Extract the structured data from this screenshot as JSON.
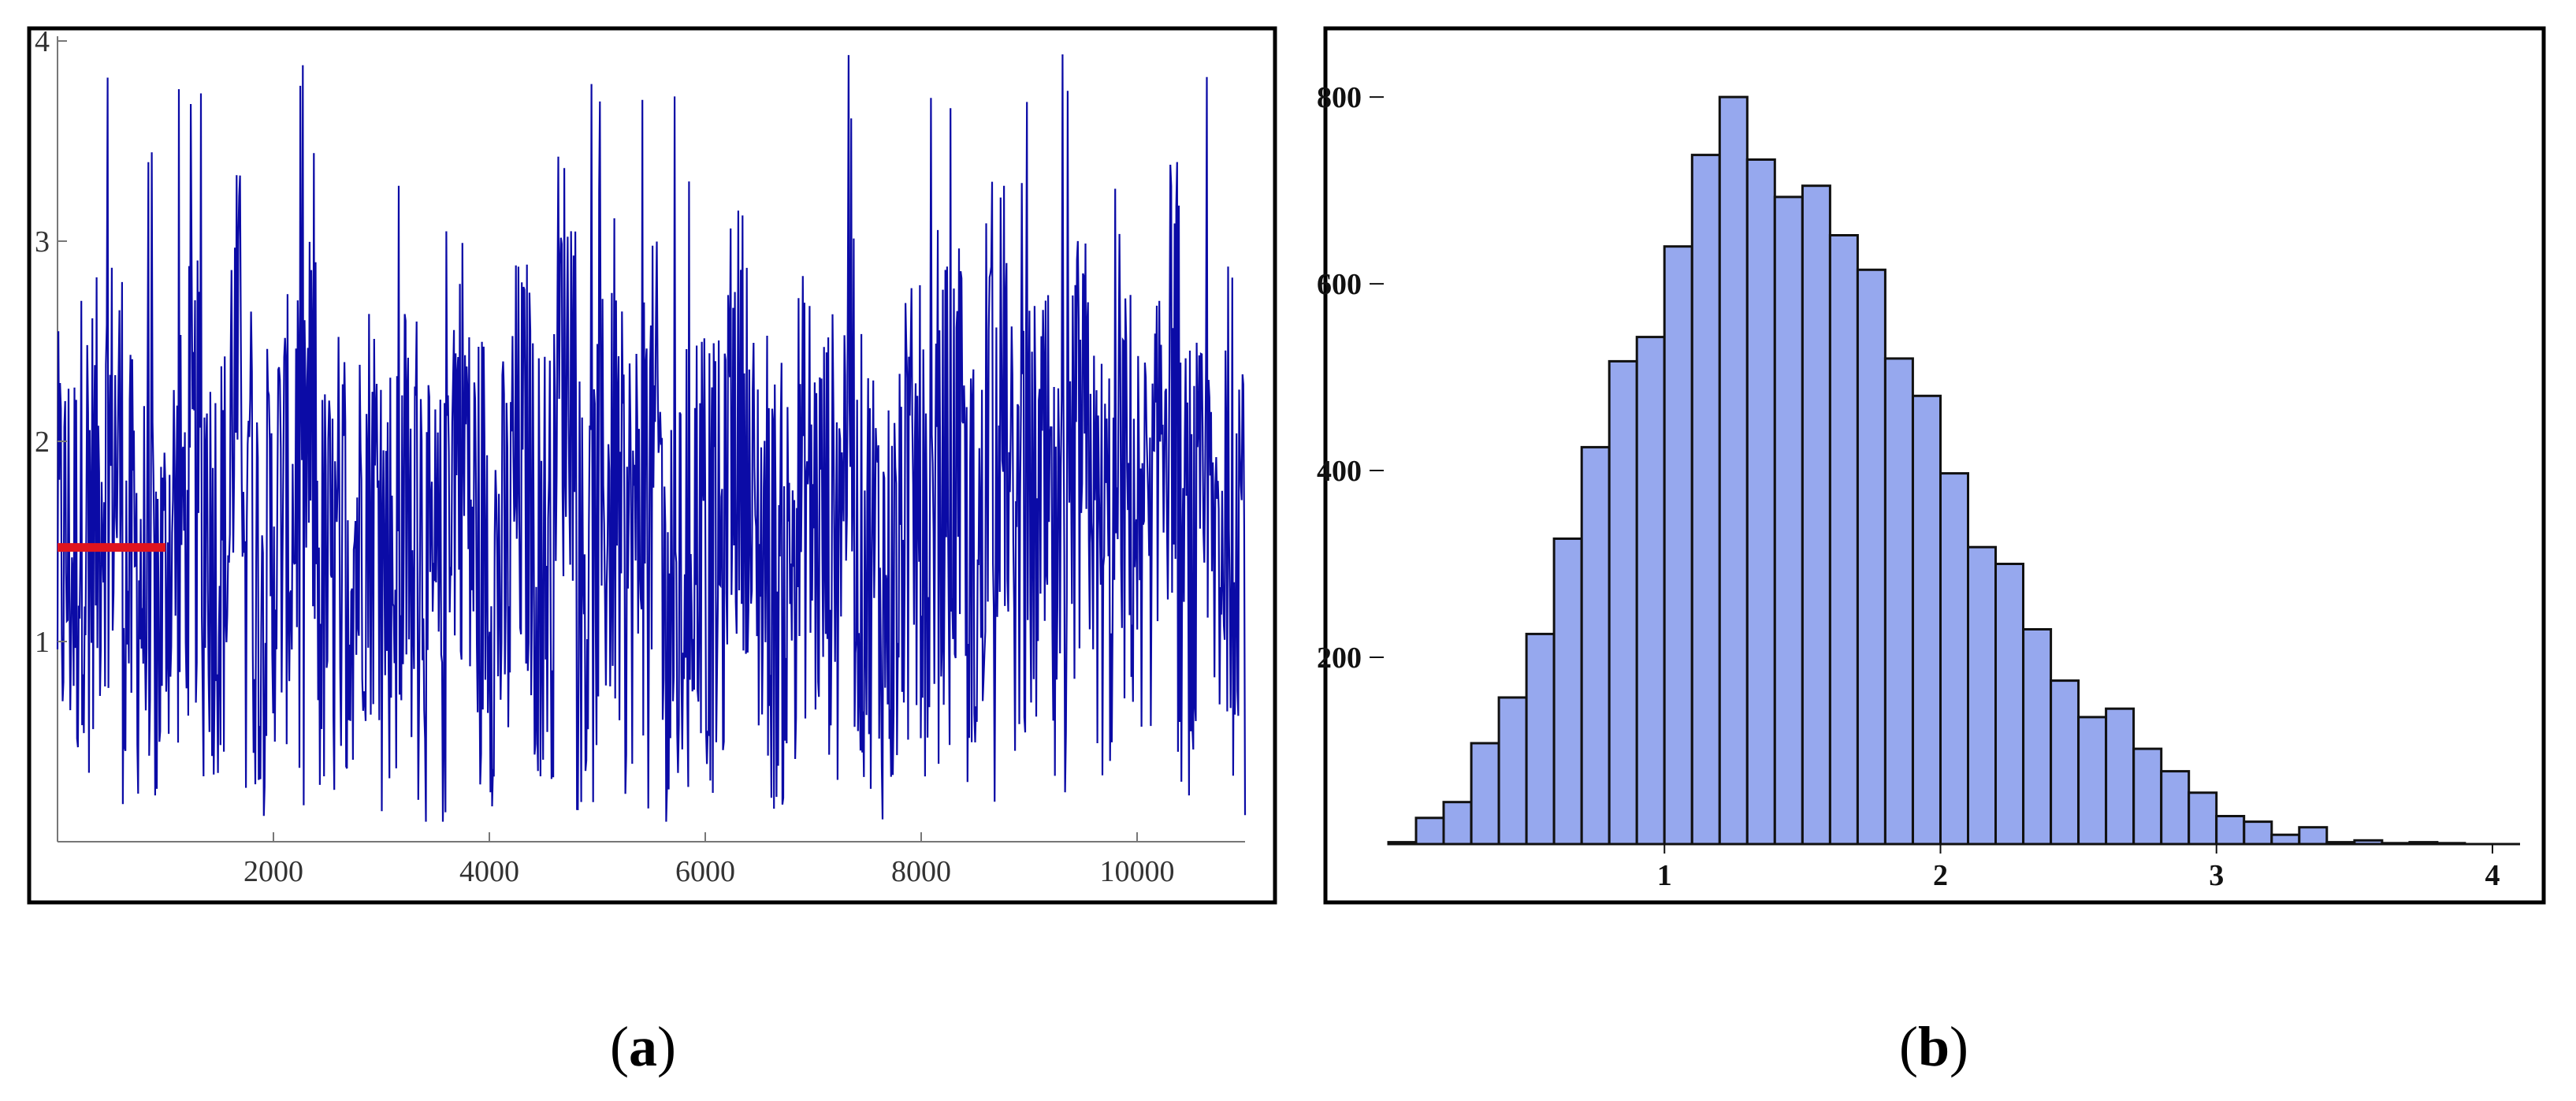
{
  "chart_data": [
    {
      "type": "line",
      "panel_label": "a",
      "title": "",
      "xlabel": "",
      "ylabel": "",
      "xlim": [
        0,
        11000
      ],
      "ylim": [
        0,
        4
      ],
      "xticks": [
        2000,
        4000,
        6000,
        8000,
        10000
      ],
      "yticks": [
        1,
        2,
        3,
        4
      ],
      "grid": false,
      "colors": {
        "trace": "#0b0ba6",
        "reference": "#e0141e"
      },
      "series": [
        {
          "kind": "trace",
          "n_points": 11000,
          "mean_approx": 1.5,
          "range_approx": [
            0.1,
            4.0
          ],
          "values_sampled_every_200": [
            1.3,
            1.9,
            2.4,
            1.1,
            0.8,
            1.6,
            2.1,
            1.4,
            3.2,
            1.2,
            1.7,
            2.5,
            0.9,
            1.5,
            2.0,
            1.3,
            1.8,
            0.7,
            2.7,
            1.6,
            1.1,
            2.2,
            1.4,
            3.5,
            1.0,
            1.9,
            1.5,
            2.3,
            0.6,
            1.7,
            1.2,
            2.8,
            1.5,
            1.0,
            2.0,
            1.6,
            2.6,
            1.3,
            0.9,
            1.8,
            1.4,
            2.2,
            1.1,
            3.0,
            1.5,
            1.7,
            0.8,
            2.4,
            1.3,
            1.9,
            1.6,
            3.3,
            1.2,
            1.5,
            2.1,
            1.0
          ]
        },
        {
          "kind": "reference",
          "x": [
            0,
            1000
          ],
          "y": [
            1.47,
            1.47
          ]
        }
      ]
    },
    {
      "type": "bar",
      "panel_label": "b",
      "title": "",
      "xlabel": "",
      "ylabel": "",
      "xlim": [
        0,
        4.1
      ],
      "ylim": [
        0,
        860
      ],
      "xticks": [
        1,
        2,
        3,
        4
      ],
      "yticks": [
        200,
        400,
        600,
        800
      ],
      "grid": false,
      "colors": {
        "bar_fill": "#96a8ee",
        "bar_edge": "#111111"
      },
      "bin_width": 0.1,
      "bins_start": [
        0.0,
        0.1,
        0.2,
        0.3,
        0.4,
        0.5,
        0.6,
        0.7,
        0.8,
        0.9,
        1.0,
        1.1,
        1.2,
        1.3,
        1.4,
        1.5,
        1.6,
        1.7,
        1.8,
        1.9,
        2.0,
        2.1,
        2.2,
        2.3,
        2.4,
        2.5,
        2.6,
        2.7,
        2.8,
        2.9,
        3.0,
        3.1,
        3.2,
        3.3,
        3.4,
        3.5,
        3.6,
        3.7,
        3.8
      ],
      "values": [
        2,
        28,
        45,
        108,
        157,
        225,
        327,
        425,
        517,
        543,
        640,
        738,
        800,
        733,
        693,
        705,
        652,
        615,
        520,
        480,
        397,
        318,
        300,
        230,
        175,
        136,
        145,
        102,
        78,
        55,
        30,
        24,
        10,
        18,
        2,
        4,
        1,
        2,
        1
      ]
    }
  ],
  "captions": {
    "a": {
      "open": "(",
      "letter": "a",
      "close": ")"
    },
    "b": {
      "open": "(",
      "letter": "b",
      "close": ")"
    }
  }
}
